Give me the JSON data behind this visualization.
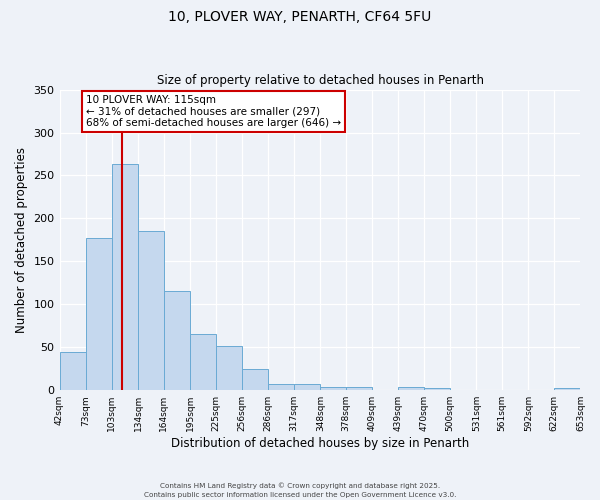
{
  "title_line1": "10, PLOVER WAY, PENARTH, CF64 5FU",
  "title_line2": "Size of property relative to detached houses in Penarth",
  "xlabel": "Distribution of detached houses by size in Penarth",
  "ylabel": "Number of detached properties",
  "bar_values_full": [
    45,
    177,
    263,
    185,
    116,
    65,
    52,
    25,
    7,
    7,
    4,
    4,
    0,
    4,
    2,
    0,
    0,
    0,
    0,
    2
  ],
  "bin_edges": [
    42,
    73,
    103,
    134,
    164,
    195,
    225,
    256,
    286,
    317,
    348,
    378,
    409,
    439,
    470,
    500,
    531,
    561,
    592,
    622,
    653
  ],
  "bin_labels": [
    "42sqm",
    "73sqm",
    "103sqm",
    "134sqm",
    "164sqm",
    "195sqm",
    "225sqm",
    "256sqm",
    "286sqm",
    "317sqm",
    "348sqm",
    "378sqm",
    "409sqm",
    "439sqm",
    "470sqm",
    "500sqm",
    "531sqm",
    "561sqm",
    "592sqm",
    "622sqm",
    "653sqm"
  ],
  "bar_color": "#c5d8ee",
  "bar_edge_color": "#6aaad4",
  "vline_x": 115,
  "vline_color": "#cc0000",
  "ylim": [
    0,
    350
  ],
  "yticks": [
    0,
    50,
    100,
    150,
    200,
    250,
    300,
    350
  ],
  "annotation_title": "10 PLOVER WAY: 115sqm",
  "annotation_line1": "← 31% of detached houses are smaller (297)",
  "annotation_line2": "68% of semi-detached houses are larger (646) →",
  "annotation_box_color": "#ffffff",
  "annotation_box_edge": "#cc0000",
  "footnote1": "Contains HM Land Registry data © Crown copyright and database right 2025.",
  "footnote2": "Contains public sector information licensed under the Open Government Licence v3.0.",
  "background_color": "#eef2f8",
  "plot_bg_color": "#eef2f8",
  "grid_color": "#ffffff"
}
